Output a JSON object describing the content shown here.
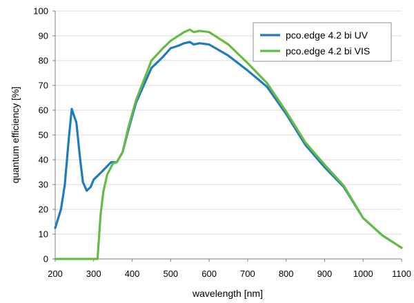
{
  "chart_data": {
    "type": "line",
    "title": "",
    "xlabel": "wavelength [nm]",
    "ylabel": "quantum efficiency [%]",
    "xlim": [
      200,
      1100
    ],
    "ylim": [
      0,
      100
    ],
    "xticks": [
      200,
      300,
      400,
      500,
      600,
      700,
      800,
      900,
      1000,
      1100
    ],
    "yticks": [
      0,
      10,
      20,
      30,
      40,
      50,
      60,
      70,
      80,
      90,
      100
    ],
    "grid": true,
    "legend_position": "top-right",
    "series": [
      {
        "name": "pco.edge 4.2 bi UV",
        "color": "#1f7bbf",
        "points": [
          [
            200,
            12.5
          ],
          [
            215,
            20
          ],
          [
            225,
            30
          ],
          [
            235,
            48
          ],
          [
            243,
            60.5
          ],
          [
            255,
            55
          ],
          [
            265,
            40
          ],
          [
            272,
            31
          ],
          [
            282,
            27.5
          ],
          [
            292,
            29
          ],
          [
            300,
            32
          ],
          [
            320,
            35
          ],
          [
            345,
            39
          ],
          [
            360,
            39
          ],
          [
            375,
            43
          ],
          [
            390,
            52
          ],
          [
            410,
            63
          ],
          [
            450,
            77
          ],
          [
            480,
            81.5
          ],
          [
            500,
            85
          ],
          [
            520,
            86
          ],
          [
            535,
            87
          ],
          [
            550,
            87.5
          ],
          [
            560,
            86.5
          ],
          [
            575,
            87
          ],
          [
            600,
            86.5
          ],
          [
            650,
            82
          ],
          [
            700,
            76
          ],
          [
            750,
            69.5
          ],
          [
            800,
            58.5
          ],
          [
            850,
            46
          ],
          [
            900,
            37
          ],
          [
            950,
            29
          ],
          [
            1000,
            16.5
          ],
          [
            1050,
            9.5
          ],
          [
            1100,
            4.5
          ]
        ]
      },
      {
        "name": "pco.edge 4.2 bi VIS",
        "color": "#66bb44",
        "points": [
          [
            200,
            0
          ],
          [
            305,
            0
          ],
          [
            310,
            0
          ],
          [
            318,
            18
          ],
          [
            325,
            27
          ],
          [
            335,
            34
          ],
          [
            350,
            38.5
          ],
          [
            360,
            39
          ],
          [
            375,
            43
          ],
          [
            390,
            53
          ],
          [
            410,
            64
          ],
          [
            450,
            80
          ],
          [
            480,
            85
          ],
          [
            500,
            88
          ],
          [
            520,
            90
          ],
          [
            535,
            91.5
          ],
          [
            550,
            92.5
          ],
          [
            560,
            91.5
          ],
          [
            575,
            92
          ],
          [
            600,
            91.5
          ],
          [
            650,
            86.5
          ],
          [
            700,
            79
          ],
          [
            750,
            71
          ],
          [
            800,
            59.5
          ],
          [
            850,
            47
          ],
          [
            900,
            38
          ],
          [
            950,
            29.5
          ],
          [
            1000,
            16.5
          ],
          [
            1050,
            9.5
          ],
          [
            1100,
            4.5
          ]
        ]
      }
    ]
  }
}
